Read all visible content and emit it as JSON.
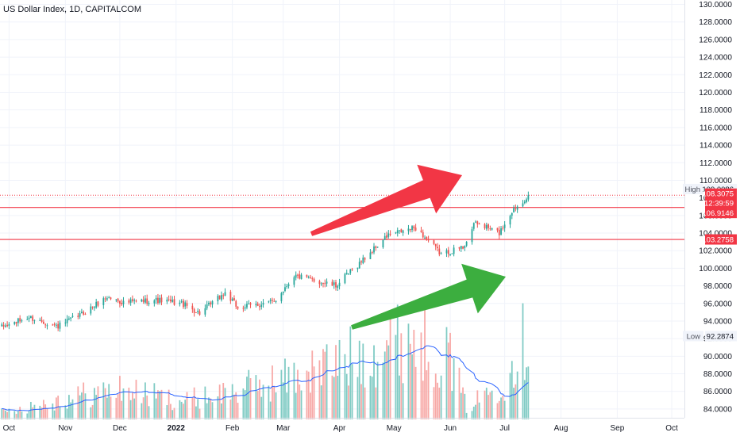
{
  "title": "US Dollar Index, 1D, CAPITALCOM",
  "colors": {
    "up": "#26a69a",
    "down": "#ef5350",
    "vol_up": "#80cbc4",
    "vol_down": "#f7a9a7",
    "ma": "#2962ff",
    "level": "#f23645",
    "arrow_red": "#f23645",
    "arrow_green": "#3cae3f",
    "grid": "#f0f3fa",
    "axis_text": "#131722"
  },
  "chart_data": {
    "type": "candlestick",
    "title": "US Dollar Index, 1D, CAPITALCOM",
    "x_axis": {
      "type": "date",
      "min": "2021-09-26",
      "max": "2022-10-08",
      "ticks": [
        {
          "date": "2021-10-01",
          "label": "Oct"
        },
        {
          "date": "2021-11-01",
          "label": "Nov"
        },
        {
          "date": "2021-12-01",
          "label": "Dec"
        },
        {
          "date": "2022-01-01",
          "label": "2022"
        },
        {
          "date": "2022-02-01",
          "label": "Feb"
        },
        {
          "date": "2022-03-01",
          "label": "Mar"
        },
        {
          "date": "2022-04-01",
          "label": "Apr"
        },
        {
          "date": "2022-05-01",
          "label": "May"
        },
        {
          "date": "2022-06-01",
          "label": "Jun"
        },
        {
          "date": "2022-07-01",
          "label": "Jul"
        },
        {
          "date": "2022-08-01",
          "label": "Aug"
        },
        {
          "date": "2022-09-01",
          "label": "Sep"
        },
        {
          "date": "2022-10-01",
          "label": "Oct"
        }
      ]
    },
    "y_axis": {
      "min": 83,
      "max": 130.5,
      "ticks": [
        "84.0000",
        "86.0000",
        "88.0000",
        "90.0000",
        "92.0000",
        "94.0000",
        "96.0000",
        "98.0000",
        "100.0000",
        "102.0000",
        "104.0000",
        "106.0000",
        "108.0000",
        "110.0000",
        "112.0000",
        "114.0000",
        "116.0000",
        "118.0000",
        "120.0000",
        "122.0000",
        "124.0000",
        "126.0000",
        "128.0000",
        "130.0000"
      ]
    },
    "grid": true,
    "price_anchors": [
      [
        "2021-09-27",
        93.3
      ],
      [
        "2021-10-12",
        94.4
      ],
      [
        "2021-10-28",
        93.4
      ],
      [
        "2021-11-10",
        94.8
      ],
      [
        "2021-11-24",
        96.7
      ],
      [
        "2021-12-03",
        96.1
      ],
      [
        "2021-12-20",
        96.4
      ],
      [
        "2022-01-04",
        96.0
      ],
      [
        "2022-01-14",
        94.9
      ],
      [
        "2022-01-28",
        97.2
      ],
      [
        "2022-02-04",
        95.5
      ],
      [
        "2022-02-24",
        96.2
      ],
      [
        "2022-03-07",
        99.2
      ],
      [
        "2022-03-14",
        98.8
      ],
      [
        "2022-03-30",
        98.0
      ],
      [
        "2022-04-08",
        99.8
      ],
      [
        "2022-04-28",
        103.8
      ],
      [
        "2022-05-13",
        104.6
      ],
      [
        "2022-05-27",
        101.6
      ],
      [
        "2022-06-08",
        102.4
      ],
      [
        "2022-06-15",
        105.2
      ],
      [
        "2022-06-28",
        104.0
      ],
      [
        "2022-07-05",
        106.5
      ],
      [
        "2022-07-14",
        108.3
      ]
    ],
    "volume_anchors": [
      [
        "2021-09-27",
        0.05
      ],
      [
        "2021-10-15",
        0.1
      ],
      [
        "2021-11-10",
        0.17
      ],
      [
        "2021-12-01",
        0.21
      ],
      [
        "2022-01-05",
        0.13
      ],
      [
        "2022-02-01",
        0.2
      ],
      [
        "2022-03-01",
        0.28
      ],
      [
        "2022-04-01",
        0.4
      ],
      [
        "2022-05-10",
        0.58
      ],
      [
        "2022-06-01",
        0.43
      ],
      [
        "2022-06-10",
        0.08
      ],
      [
        "2022-07-01",
        0.28
      ],
      [
        "2022-07-14",
        0.62
      ]
    ],
    "levels": [
      106.9146,
      103.2758
    ],
    "high": {
      "label": "High",
      "value": "109.0086"
    },
    "low": {
      "label": "Low",
      "value": "92.2874"
    },
    "last_price": {
      "value": "108.3075",
      "countdown": "12:39:59"
    },
    "level_labels": [
      "106.9146",
      "103.2758"
    ]
  }
}
